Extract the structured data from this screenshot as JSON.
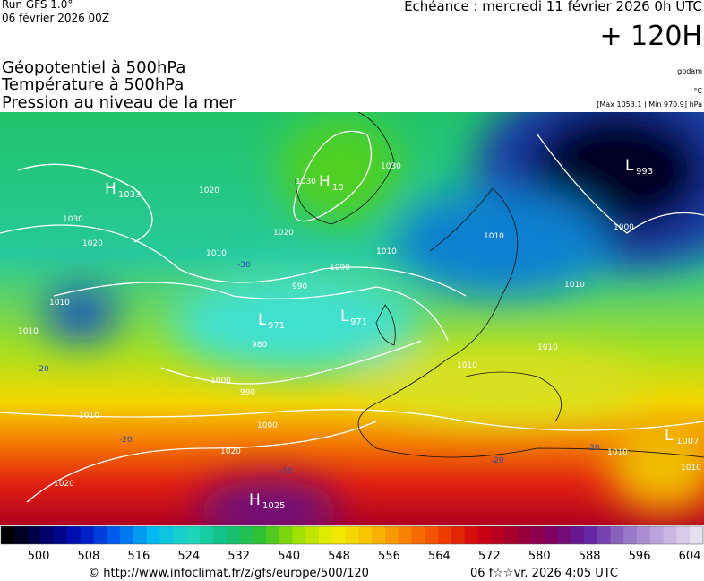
{
  "header": {
    "run": "Run GFS 1.0°",
    "run_date": "06 février 2026 00Z",
    "valid": "Echéance : mercredi 11 février 2026 0h UTC",
    "lead": "+ 120H",
    "fields": [
      "Géopotentiel à 500hPa",
      "Température à 500hPa",
      "Pression au niveau de la mer"
    ],
    "units": [
      "gpdam",
      "°C",
      "[Max 1053.1 | Min 970.9] hPa"
    ]
  },
  "map": {
    "centers": [
      {
        "letter": "H",
        "value": "1033"
      },
      {
        "letter": "H",
        "value": "10"
      },
      {
        "letter": "L",
        "value": "993"
      },
      {
        "letter": "L",
        "value": "971"
      },
      {
        "letter": "L",
        "value": "971"
      },
      {
        "letter": "L",
        "value": "1007"
      },
      {
        "letter": "H",
        "value": "1025"
      }
    ],
    "isobars": [
      "1030",
      "1020",
      "1010",
      "1020",
      "1030",
      "1030",
      "1020",
      "1010",
      "1000",
      "990",
      "980",
      "1000",
      "1010",
      "1000",
      "1010",
      "1010",
      "1020",
      "1020",
      "1010",
      "1010",
      "1000",
      "1010",
      "1010",
      "990",
      "1010",
      "1010"
    ],
    "isotherms": [
      "-30",
      "-20",
      "-20",
      "-10",
      "-20",
      "-20"
    ]
  },
  "colorbar": {
    "labels": [
      "500",
      "508",
      "516",
      "524",
      "532",
      "540",
      "548",
      "556",
      "564",
      "572",
      "580",
      "588",
      "596",
      "604"
    ]
  },
  "footer": {
    "url": "© http://www.infoclimat.fr/z/gfs/europe/500/120",
    "stamp": "06 f☆☆vr. 2026  4:05 UTC"
  }
}
